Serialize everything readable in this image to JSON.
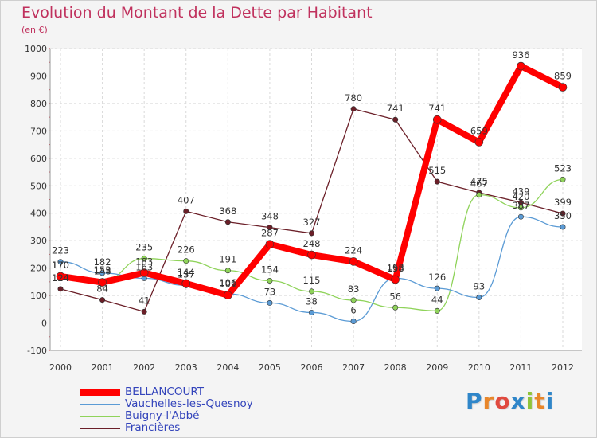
{
  "chart_data": {
    "type": "line",
    "title": "Evolution du Montant de la Dette par Habitant",
    "subtitle": "(en €)",
    "x": [
      "2000",
      "2001",
      "2002",
      "2003",
      "2004",
      "2005",
      "2006",
      "2007",
      "2008",
      "2009",
      "2010",
      "2011",
      "2012"
    ],
    "yticks": [
      "-100",
      "0",
      "100",
      "200",
      "300",
      "400",
      "500",
      "600",
      "700",
      "800",
      "900",
      "1000"
    ],
    "ylim": [
      -100,
      1000
    ],
    "grid": true,
    "legend": "bottom-left",
    "series": [
      {
        "name": "BELLANCOURT",
        "color": "#ff0000",
        "values": [
          170,
          148,
          183,
          144,
          101,
          287,
          248,
          224,
          158,
          741,
          659,
          936,
          859
        ]
      },
      {
        "name": "Vauchelles-les-Quesnoy",
        "color": "#5b9bd5",
        "values": [
          223,
          182,
          163,
          137,
          106,
          73,
          38,
          6,
          163,
          126,
          93,
          387,
          350
        ]
      },
      {
        "name": "Buigny-l'Abbé",
        "color": "#8fd35a",
        "values": [
          170,
          153,
          235,
          226,
          191,
          154,
          115,
          83,
          56,
          44,
          467,
          420,
          523
        ]
      },
      {
        "name": "Francières",
        "color": "#6b1f28",
        "values": [
          124,
          84,
          41,
          407,
          368,
          348,
          327,
          780,
          741,
          515,
          475,
          439,
          399
        ]
      }
    ],
    "point_labels": [
      [
        "170",
        "148",
        "183",
        "144",
        "101",
        "287",
        "248",
        "224",
        "158",
        "741",
        "659",
        "936",
        "859"
      ],
      [
        "223",
        "182",
        "163",
        "137",
        "106",
        "73",
        "38",
        "6",
        "163",
        "126",
        "93",
        "387",
        "350"
      ],
      [
        "170",
        "153",
        "235",
        "226",
        "191",
        "154",
        "115",
        "83",
        "56",
        "44",
        "467",
        "420",
        "523"
      ],
      [
        "124",
        "84",
        "41",
        "407",
        "368",
        "348",
        "327",
        "780",
        "741",
        "515",
        "475",
        "439",
        "399"
      ]
    ]
  },
  "logo": {
    "letters": [
      "P",
      "r",
      "o",
      "x",
      "i",
      "t",
      "i"
    ],
    "colors": [
      "#2f86c9",
      "#e8862a",
      "#e04a3f",
      "#2f86c9",
      "#8fc43a",
      "#e8862a",
      "#2f86c9"
    ]
  }
}
